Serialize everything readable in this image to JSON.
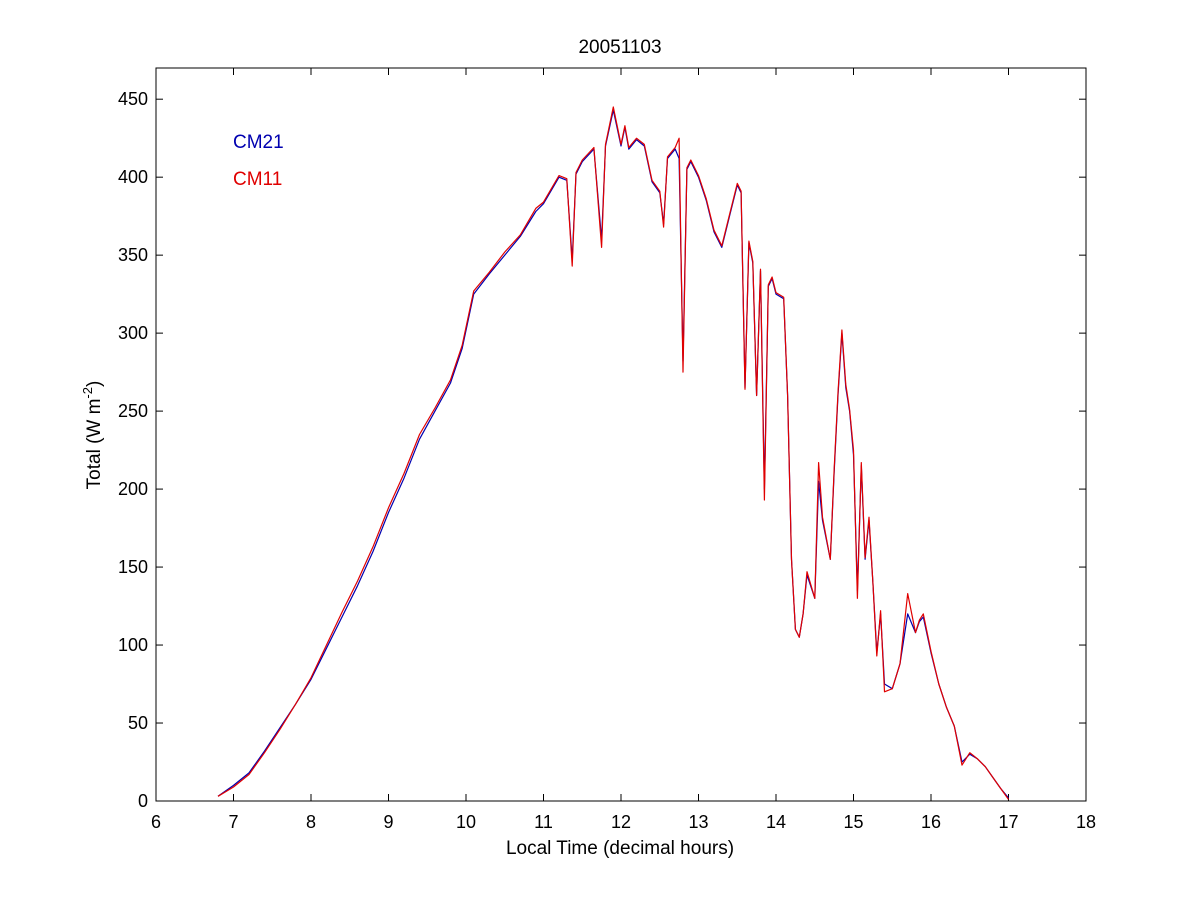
{
  "chart_data": {
    "type": "line",
    "title": "20051103",
    "xlabel": "Local Time (decimal hours)",
    "ylabel_main": "Total (W m",
    "ylabel_sup": "-2",
    "ylabel_close": ")",
    "xlim": [
      6,
      18
    ],
    "ylim": [
      0,
      470
    ],
    "xticks": [
      6,
      7,
      8,
      9,
      10,
      11,
      12,
      13,
      14,
      15,
      16,
      17,
      18
    ],
    "yticks": [
      0,
      50,
      100,
      150,
      200,
      250,
      300,
      350,
      400,
      450
    ],
    "grid": false,
    "legend_position": "top-left",
    "series": [
      {
        "name": "CM21",
        "color": "#0000b0",
        "x": [
          6.8,
          7.0,
          7.2,
          7.4,
          7.6,
          7.8,
          8.0,
          8.2,
          8.4,
          8.6,
          8.8,
          9.0,
          9.2,
          9.4,
          9.6,
          9.8,
          9.95,
          10.1,
          10.3,
          10.5,
          10.7,
          10.9,
          11.0,
          11.2,
          11.3,
          11.37,
          11.42,
          11.5,
          11.65,
          11.75,
          11.8,
          11.9,
          12.0,
          12.05,
          12.1,
          12.2,
          12.3,
          12.4,
          12.5,
          12.55,
          12.6,
          12.7,
          12.75,
          12.8,
          12.85,
          12.9,
          13.0,
          13.1,
          13.2,
          13.3,
          13.4,
          13.5,
          13.55,
          13.6,
          13.65,
          13.7,
          13.75,
          13.8,
          13.85,
          13.9,
          13.95,
          14.0,
          14.1,
          14.15,
          14.2,
          14.25,
          14.3,
          14.35,
          14.4,
          14.5,
          14.55,
          14.6,
          14.7,
          14.75,
          14.8,
          14.85,
          14.9,
          14.95,
          15.0,
          15.05,
          15.1,
          15.15,
          15.2,
          15.25,
          15.3,
          15.35,
          15.4,
          15.5,
          15.6,
          15.7,
          15.8,
          15.85,
          15.9,
          16.0,
          16.1,
          16.2,
          16.3,
          16.4,
          16.5,
          16.6,
          16.7,
          16.8,
          16.9,
          17.0
        ],
        "y": [
          3,
          10,
          18,
          32,
          47,
          62,
          78,
          98,
          118,
          138,
          160,
          185,
          207,
          232,
          250,
          268,
          290,
          325,
          338,
          350,
          362,
          378,
          383,
          400,
          398,
          347,
          402,
          410,
          418,
          360,
          420,
          443,
          420,
          432,
          418,
          424,
          420,
          397,
          390,
          370,
          412,
          418,
          412,
          282,
          405,
          410,
          400,
          385,
          365,
          355,
          375,
          395,
          390,
          265,
          358,
          345,
          260,
          340,
          200,
          330,
          335,
          325,
          322,
          260,
          155,
          110,
          105,
          120,
          145,
          130,
          205,
          180,
          155,
          210,
          260,
          300,
          265,
          250,
          222,
          135,
          215,
          155,
          180,
          140,
          95,
          120,
          75,
          72,
          88,
          120,
          108,
          115,
          118,
          95,
          75,
          60,
          48,
          25,
          30,
          27,
          22,
          15,
          8,
          2
        ]
      },
      {
        "name": "CM11",
        "color": "#e00000",
        "x": [
          6.8,
          7.0,
          7.2,
          7.4,
          7.6,
          7.8,
          8.0,
          8.2,
          8.4,
          8.6,
          8.8,
          9.0,
          9.2,
          9.4,
          9.6,
          9.8,
          9.95,
          10.1,
          10.3,
          10.5,
          10.7,
          10.9,
          11.0,
          11.2,
          11.3,
          11.37,
          11.42,
          11.5,
          11.65,
          11.75,
          11.8,
          11.9,
          12.0,
          12.05,
          12.1,
          12.2,
          12.3,
          12.4,
          12.5,
          12.55,
          12.6,
          12.7,
          12.75,
          12.8,
          12.85,
          12.9,
          13.0,
          13.1,
          13.2,
          13.3,
          13.4,
          13.5,
          13.55,
          13.6,
          13.65,
          13.7,
          13.75,
          13.8,
          13.85,
          13.9,
          13.95,
          14.0,
          14.1,
          14.15,
          14.2,
          14.25,
          14.3,
          14.35,
          14.4,
          14.5,
          14.55,
          14.6,
          14.7,
          14.75,
          14.8,
          14.85,
          14.9,
          14.95,
          15.0,
          15.05,
          15.1,
          15.15,
          15.2,
          15.25,
          15.3,
          15.35,
          15.4,
          15.5,
          15.6,
          15.7,
          15.8,
          15.85,
          15.9,
          16.0,
          16.1,
          16.2,
          16.3,
          16.4,
          16.5,
          16.6,
          16.7,
          16.8,
          16.9,
          17.0
        ],
        "y": [
          3,
          9,
          17,
          31,
          46,
          62,
          79,
          100,
          121,
          141,
          163,
          188,
          210,
          235,
          252,
          270,
          292,
          327,
          339,
          352,
          363,
          380,
          384,
          401,
          399,
          343,
          403,
          411,
          419,
          355,
          421,
          445,
          421,
          433,
          419,
          425,
          421,
          398,
          391,
          368,
          413,
          419,
          425,
          275,
          406,
          411,
          401,
          386,
          366,
          356,
          376,
          396,
          391,
          264,
          359,
          346,
          260,
          341,
          193,
          331,
          336,
          326,
          323,
          260,
          155,
          110,
          105,
          120,
          147,
          130,
          217,
          182,
          155,
          212,
          262,
          302,
          267,
          251,
          225,
          130,
          217,
          156,
          182,
          140,
          93,
          122,
          70,
          72,
          88,
          133,
          108,
          116,
          120,
          96,
          75,
          60,
          48,
          23,
          31,
          27,
          22,
          15,
          8,
          1
        ]
      }
    ]
  }
}
